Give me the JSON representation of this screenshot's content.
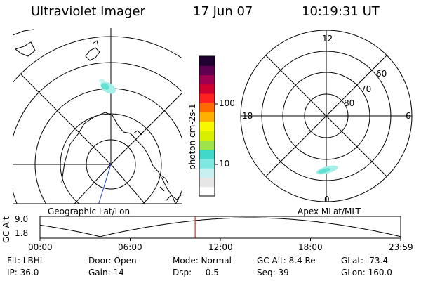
{
  "header": {
    "title": "Ultraviolet Imager",
    "date": "17 Jun 07",
    "time": "10:19:31 UT"
  },
  "colorbar": {
    "label": "photon cm-2s-1",
    "ticks": [
      "100",
      "10"
    ],
    "colors": [
      "#ffffff",
      "#e6e6e6",
      "#c8f0f0",
      "#7fe8e0",
      "#40d8c8",
      "#9ee34a",
      "#d8f000",
      "#f8f800",
      "#ffb000",
      "#ff6a00",
      "#ff2020",
      "#d00030",
      "#a00050",
      "#600050",
      "#200030"
    ]
  },
  "left_panel": {
    "caption": "Geographic Lat/Lon"
  },
  "right_panel": {
    "caption": "Apex MLat/MLT",
    "mlt_labels": {
      "top": "12",
      "left": "18",
      "right": "6",
      "bottom": "0"
    },
    "lat_labels": [
      "60",
      "70",
      "80"
    ]
  },
  "altitude_plot": {
    "ylabel": "GC Alt",
    "y_ticks": [
      "9.0",
      "1.8"
    ],
    "x_ticks": [
      "00:00",
      "06:00",
      "12:00",
      "18:00",
      "23:59"
    ],
    "marker_time_hours": 10.325,
    "marker_color": "#e00000"
  },
  "footer": {
    "row1": {
      "flt": "Flt: LBHL",
      "door": "Door: Open",
      "mode": "Mode: Normal",
      "gcalt": "GC Alt: 8.4 Re",
      "glat": "GLat: -73.4"
    },
    "row2": {
      "ip": "IP: 36.0",
      "gain": "Gain: 14",
      "dsp": "Dsp:    -0.5",
      "seq": "Seq: 39",
      "glon": "GLon: 160.0"
    }
  }
}
